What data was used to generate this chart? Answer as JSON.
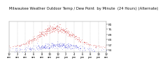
{
  "title": "Milwaukee Weather Outdoor Temp / Dew Point  by Minute  (24 Hours) (Alternate)",
  "title_fontsize": 3.8,
  "background_color": "#ffffff",
  "ylim": [
    49,
    84
  ],
  "yticks": [
    51,
    57,
    63,
    69,
    75,
    81
  ],
  "ytick_labels": [
    "51",
    "57",
    "63",
    "69",
    "75",
    "81"
  ],
  "ylabel_fontsize": 3.2,
  "xlabel_fontsize": 2.8,
  "grid_color": "#bbbbbb",
  "line_color_temp": "#cc0000",
  "line_color_dew": "#0000cc",
  "n_minutes": 1440,
  "seed": 7
}
